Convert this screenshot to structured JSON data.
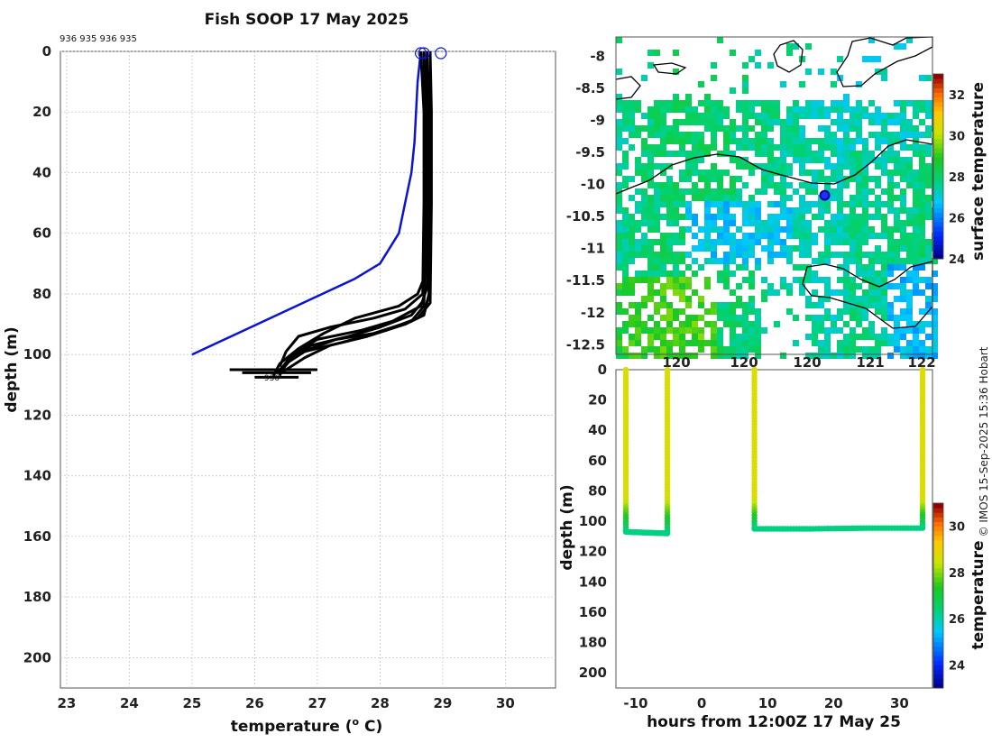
{
  "title": "Fish SOOP 17 May 2025",
  "cruise_ids": "936 935 936 935",
  "credit": "© IMOS 15-Sep-2025 15:36 Hobart",
  "colors": {
    "profile": "#000000",
    "reference": "#0a14d2",
    "grid": "#c8c8c8"
  },
  "chart_data": [
    {
      "type": "line",
      "name": "temperature-profiles",
      "title": "Fish SOOP 17 May 2025",
      "xlabel": "temperature (° C)",
      "xlabel_main": "temperature (",
      "xlabel_sup": "o",
      "xlabel_end": " C)",
      "ylabel": "depth (m)",
      "xlim": [
        22.9,
        30.8
      ],
      "ylim": [
        210,
        0
      ],
      "xticks": [
        23,
        24,
        25,
        26,
        27,
        28,
        29,
        30
      ],
      "yticks": [
        0,
        20,
        40,
        60,
        80,
        100,
        120,
        140,
        160,
        180,
        200
      ],
      "grid": true,
      "series": [
        {
          "name": "reference",
          "color": "#0a14d2",
          "width": 2.5,
          "x": [
            28.65,
            28.6,
            28.55,
            28.5,
            28.4,
            28.3,
            28.0,
            27.6,
            25.0
          ],
          "y": [
            0,
            10,
            30,
            40,
            50,
            60,
            70,
            75,
            100
          ]
        },
        {
          "name": "profile-1",
          "x": [
            28.7,
            28.72,
            28.72,
            28.7,
            28.6,
            28.3,
            27.6,
            27.1,
            26.7,
            26.4,
            26.3
          ],
          "y": [
            0,
            20,
            50,
            75,
            80,
            84,
            88,
            93,
            98,
            103,
            107
          ]
        },
        {
          "name": "profile-2",
          "x": [
            28.75,
            28.77,
            28.77,
            28.75,
            28.65,
            28.2,
            27.7,
            27.0,
            26.6,
            26.45,
            26.4
          ],
          "y": [
            0,
            20,
            50,
            78,
            84,
            89,
            92,
            95,
            100,
            104,
            107
          ]
        },
        {
          "name": "profile-3",
          "x": [
            28.8,
            28.8,
            28.8,
            28.78,
            28.7,
            28.4,
            27.8,
            27.2,
            26.8,
            26.5,
            26.4
          ],
          "y": [
            0,
            20,
            50,
            80,
            87,
            90,
            94,
            97,
            101,
            105,
            106
          ]
        },
        {
          "name": "profile-4",
          "x": [
            28.65,
            28.7,
            28.7,
            28.68,
            28.4,
            27.9,
            27.2,
            26.7,
            26.5,
            26.4
          ],
          "y": [
            0,
            20,
            50,
            80,
            85,
            88,
            91,
            94,
            99,
            104
          ]
        },
        {
          "name": "profile-5",
          "x": [
            28.75,
            28.75,
            28.75,
            28.7,
            28.5,
            28.0,
            27.5,
            26.9,
            26.55,
            26.45
          ],
          "y": [
            0,
            20,
            50,
            82,
            87,
            91,
            94,
            97,
            101,
            105
          ]
        },
        {
          "name": "profile-6",
          "x": [
            28.8,
            28.82,
            28.82,
            28.8,
            28.6,
            28.1,
            27.4,
            26.8,
            26.5,
            26.35
          ],
          "y": [
            0,
            20,
            50,
            83,
            88,
            92,
            96,
            99,
            103,
            106
          ]
        },
        {
          "name": "profile-7",
          "x": [
            28.7,
            28.72,
            28.72,
            28.7,
            28.5,
            27.9,
            27.3,
            26.9,
            26.6,
            26.4
          ],
          "y": [
            0,
            20,
            50,
            84,
            89,
            93,
            95,
            98,
            101,
            106
          ]
        }
      ],
      "surface_markers": [
        {
          "x": 28.65,
          "y": 0
        },
        {
          "x": 28.7,
          "y": 0
        },
        {
          "x": 28.97,
          "y": 0
        }
      ],
      "bottom_hits": [
        {
          "x0": 25.6,
          "x1": 27.0,
          "y": 105
        },
        {
          "x0": 25.8,
          "x1": 26.9,
          "y": 106
        },
        {
          "x0": 26.0,
          "x1": 26.7,
          "y": 107.5
        }
      ],
      "annotations": [
        {
          "text": "936",
          "x": 26.15,
          "y": 108.5
        }
      ]
    },
    {
      "type": "heatmap",
      "name": "sst-map",
      "ylim": [
        -12.65,
        -7.7
      ],
      "xlim": [
        118.7,
        121.05
      ],
      "yticks": [
        -8,
        -8.5,
        -9,
        -9.5,
        -10,
        -10.5,
        -11,
        -11.5,
        -12,
        -12.5
      ],
      "xticks_visible": [
        "120",
        "120",
        "121",
        "122"
      ],
      "colorbar": {
        "label": "surface temperature",
        "min": 24,
        "max": 33,
        "ticks": [
          24,
          26,
          28,
          30,
          32
        ]
      },
      "position_marker": {
        "lon": 120.25,
        "lat": -10.17
      }
    },
    {
      "type": "scatter",
      "name": "depth-time-section",
      "xlabel": "hours from 12:00Z 17 May 25",
      "ylabel": "depth (m)",
      "xlim": [
        -13,
        35
      ],
      "ylim": [
        210,
        0
      ],
      "xticks": [
        -10,
        0,
        10,
        20,
        30
      ],
      "yticks": [
        0,
        20,
        40,
        60,
        80,
        100,
        120,
        140,
        160,
        180,
        200
      ],
      "colorbar": {
        "label": "temperature",
        "min": 23,
        "max": 31,
        "ticks": [
          24,
          26,
          28,
          30
        ]
      },
      "casts": [
        {
          "t0": -11.5,
          "t1": -5.2,
          "bottom": [
            107,
            108
          ],
          "surface_temp": 28.7
        },
        {
          "t0": 8.0,
          "t1": 33.5,
          "bottom": [
            105,
            105,
            104.5,
            104.5
          ],
          "surface_temp": 28.8
        }
      ],
      "bottom_temp": 26.3
    }
  ]
}
